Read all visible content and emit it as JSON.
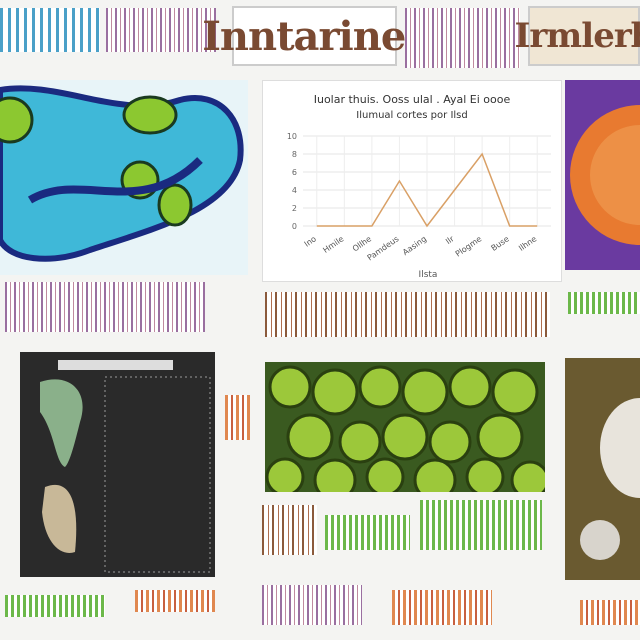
{
  "header": {
    "title": "Inntarines",
    "side_title": "Irmlerb"
  },
  "chart_data": {
    "type": "line",
    "title": "Iuolar thuis. Ooss ulal . Ayal Ei oooe",
    "subtitle": "Ilumual cortes por Ilsd",
    "x_label": "Ilsta",
    "categories": [
      "Ino",
      "Hmile",
      "Ollhe",
      "Pamdeus",
      "Aasing",
      "Ilr",
      "Plogme",
      "Buse",
      "Ilhne"
    ],
    "series": [
      {
        "name": "Ilsd",
        "color": "#d9a066",
        "values": [
          0,
          0,
          0,
          5,
          0,
          4,
          8,
          0,
          0
        ]
      }
    ],
    "ylim": [
      0,
      10
    ],
    "yticks": [
      0,
      2,
      4,
      6,
      8,
      10
    ],
    "grid": true
  }
}
